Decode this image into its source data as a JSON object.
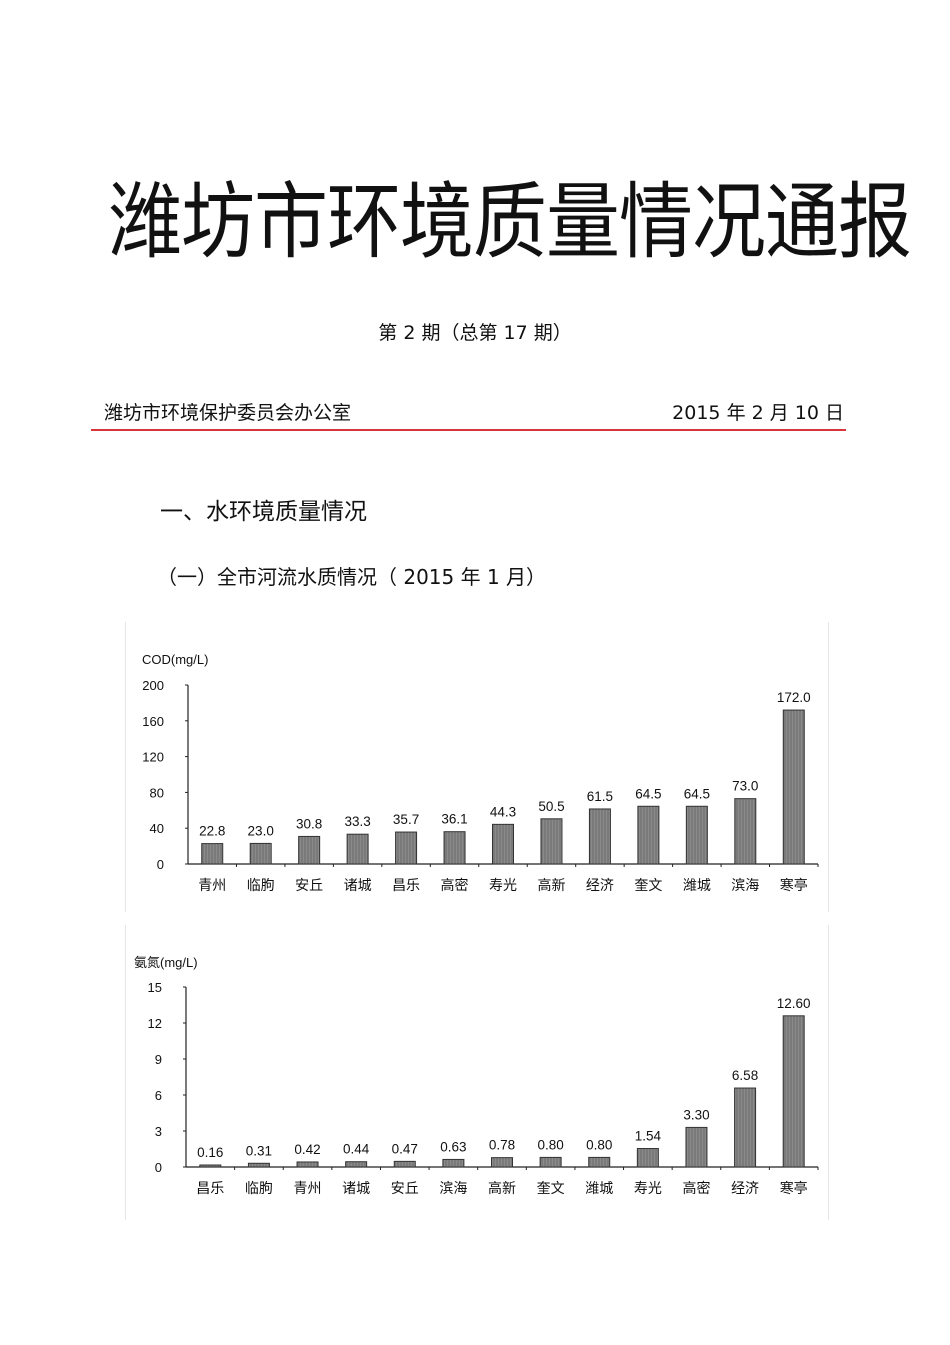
{
  "document": {
    "title": "潍坊市环境质量情况通报",
    "issue": "第 2 期（总第 17 期）",
    "issuer": "潍坊市环境保护委员会办公室",
    "date": "2015 年 2 月 10 日",
    "rule_color": "#d8363b",
    "section_heading": "一、水环境质量情况",
    "subsection_heading": "（一）全市河流水质情况（  2015 年 1 月）"
  },
  "chart_data": [
    {
      "type": "bar",
      "title": "",
      "ylabel": "COD(mg/L)",
      "xlabel": "",
      "ylim": [
        0,
        200
      ],
      "yticks": [
        0,
        40,
        80,
        120,
        160,
        200
      ],
      "grid": false,
      "legend": null,
      "categories": [
        "青州",
        "临朐",
        "安丘",
        "诸城",
        "昌乐",
        "高密",
        "寿光",
        "高新",
        "经济",
        "奎文",
        "潍城",
        "滨海",
        "寒亭"
      ],
      "values": [
        22.8,
        23.0,
        30.8,
        33.3,
        35.7,
        36.1,
        44.3,
        50.5,
        61.5,
        64.5,
        64.5,
        73.0,
        172.0
      ],
      "labels": [
        "22.8",
        "23.0",
        "30.8",
        "33.3",
        "35.7",
        "36.1",
        "44.3",
        "50.5",
        "61.5",
        "64.5",
        "64.5",
        "73.0",
        "172.0"
      ],
      "bar_color": "#7a7a7a"
    },
    {
      "type": "bar",
      "title": "",
      "ylabel": "氨氮(mg/L)",
      "xlabel": "",
      "ylim": [
        0,
        15
      ],
      "yticks": [
        0,
        3,
        6,
        9,
        12,
        15
      ],
      "grid": false,
      "legend": null,
      "categories": [
        "昌乐",
        "临朐",
        "青州",
        "诸城",
        "安丘",
        "滨海",
        "高新",
        "奎文",
        "潍城",
        "寿光",
        "高密",
        "经济",
        "寒亭"
      ],
      "values": [
        0.16,
        0.31,
        0.42,
        0.44,
        0.47,
        0.63,
        0.78,
        0.8,
        0.8,
        1.54,
        3.3,
        6.58,
        12.6
      ],
      "labels": [
        "0.16",
        "0.31",
        "0.42",
        "0.44",
        "0.47",
        "0.63",
        "0.78",
        "0.80",
        "0.80",
        "1.54",
        "3.30",
        "6.58",
        "12.60"
      ],
      "bar_color": "#7a7a7a"
    }
  ]
}
